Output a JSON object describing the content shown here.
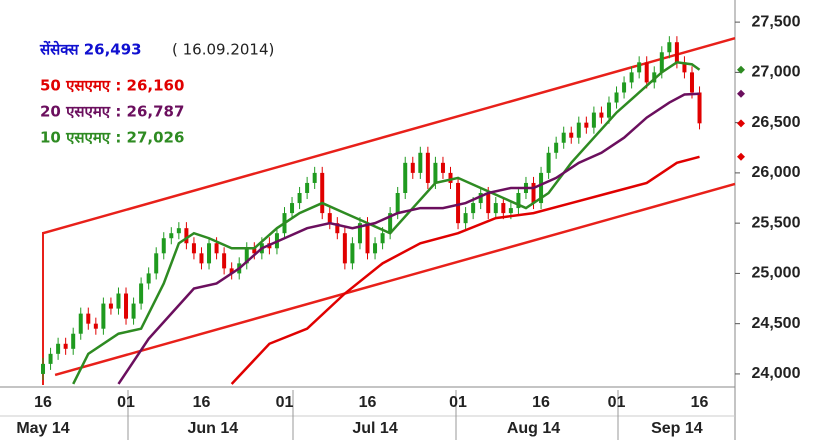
{
  "chart_data": {
    "type": "candlestick",
    "annotations": [
      {
        "text": "सेंसेक्स 26,493",
        "color": "#1010d0"
      },
      {
        "text": "( 16.09.2014)",
        "color": "#222222"
      },
      {
        "text": "50 एसएमए : 26,160",
        "color": "#e00000"
      },
      {
        "text": "20 एसएमए : 26,787",
        "color": "#6b0f5e"
      },
      {
        "text": "10 एसएमए : 27,026",
        "color": "#2e8b22"
      }
    ],
    "categories": [
      "16",
      null,
      null,
      null,
      null,
      null,
      null,
      null,
      null,
      null,
      null,
      "01",
      null,
      null,
      null,
      null,
      null,
      null,
      null,
      null,
      null,
      "16",
      null,
      null,
      null,
      null,
      null,
      null,
      null,
      null,
      null,
      null,
      "01",
      null,
      null,
      null,
      null,
      null,
      null,
      null,
      null,
      null,
      null,
      "16",
      null,
      null,
      null,
      null,
      null,
      null,
      null,
      null,
      null,
      null,
      null,
      "01",
      null,
      null,
      null,
      null,
      null,
      null,
      null,
      null,
      null,
      null,
      "16",
      null,
      null,
      null,
      null,
      null,
      null,
      null,
      null,
      null,
      "01",
      null,
      null,
      null,
      null,
      null,
      null,
      null,
      null,
      null,
      null,
      "16"
    ],
    "months": [
      {
        "value": 0,
        "label": "May 14"
      },
      {
        "value": 22.5,
        "label": "Jun 14"
      },
      {
        "value": 44,
        "label": "Jul 14"
      },
      {
        "value": 65,
        "label": "Aug 14"
      },
      {
        "value": 84,
        "label": "Sep 14"
      }
    ],
    "candles": {
      "up_color": "#1f9a1f",
      "down_color": "#e00000",
      "open": [
        24000,
        24100,
        24200,
        24300,
        24250,
        24400,
        24600,
        24500,
        24450,
        24700,
        24650,
        24800,
        24550,
        24700,
        24900,
        25000,
        25200,
        25350,
        25400,
        25450,
        25300,
        25200,
        25100,
        25300,
        25200,
        25050,
        25000,
        25100,
        25250,
        25200,
        25300,
        25250,
        25400,
        25600,
        25700,
        25800,
        25900,
        26000,
        25600,
        25500,
        25400,
        25100,
        25300,
        25500,
        25200,
        25300,
        25400,
        25600,
        25800,
        26100,
        26000,
        26200,
        25900,
        26100,
        26000,
        25900,
        25500,
        25600,
        25700,
        25800,
        25600,
        25700,
        25600,
        25650,
        25800,
        25900,
        25700,
        26000,
        26200,
        26300,
        26400,
        26350,
        26500,
        26450,
        26600,
        26550,
        26700,
        26800,
        26900,
        27000,
        27100,
        26900,
        27000,
        27200,
        27300,
        27100,
        27000,
        26800
      ],
      "high": [
        24160,
        24260,
        24360,
        24360,
        24460,
        24660,
        24660,
        24560,
        24760,
        24760,
        24860,
        24860,
        24760,
        24960,
        25060,
        25260,
        25410,
        25460,
        25510,
        25510,
        25360,
        25260,
        25360,
        25360,
        25260,
        25110,
        25160,
        25310,
        25310,
        25360,
        25360,
        25460,
        25660,
        25760,
        25860,
        25960,
        26060,
        26060,
        25660,
        25560,
        25460,
        25360,
        25560,
        25560,
        25360,
        25460,
        25660,
        25860,
        26160,
        26160,
        26260,
        26260,
        26160,
        26160,
        26060,
        25960,
        25660,
        25760,
        25860,
        25860,
        25760,
        25760,
        25710,
        25860,
        25960,
        25960,
        26060,
        26260,
        26360,
        26460,
        26460,
        26560,
        26560,
        26660,
        26660,
        26760,
        26860,
        26960,
        27060,
        27160,
        27160,
        27060,
        27260,
        27360,
        27360,
        27160,
        27060,
        26860
      ],
      "low": [
        23940,
        24040,
        24140,
        24190,
        24190,
        24340,
        24440,
        24390,
        24390,
        24590,
        24590,
        24490,
        24490,
        24640,
        24840,
        24940,
        25140,
        25290,
        25340,
        25240,
        25140,
        25040,
        25040,
        25140,
        24990,
        24940,
        24940,
        25040,
        25140,
        25140,
        25190,
        25190,
        25340,
        25540,
        25640,
        25740,
        25840,
        25540,
        25440,
        25340,
        25040,
        25040,
        25240,
        25140,
        25140,
        25240,
        25340,
        25540,
        25740,
        25940,
        25940,
        25840,
        25840,
        25940,
        25840,
        25440,
        25440,
        25540,
        25640,
        25540,
        25540,
        25540,
        25540,
        25590,
        25740,
        25640,
        25640,
        25940,
        26140,
        26240,
        26290,
        26290,
        26390,
        26390,
        26490,
        26490,
        26640,
        26740,
        26840,
        26940,
        26840,
        26840,
        26940,
        27140,
        27040,
        26940,
        26740,
        26433
      ],
      "close": [
        24100,
        24200,
        24300,
        24250,
        24400,
        24600,
        24500,
        24450,
        24700,
        24650,
        24800,
        24550,
        24700,
        24900,
        25000,
        25200,
        25350,
        25400,
        25450,
        25300,
        25200,
        25100,
        25300,
        25200,
        25050,
        25000,
        25100,
        25250,
        25200,
        25300,
        25250,
        25400,
        25600,
        25700,
        25800,
        25900,
        26000,
        25600,
        25500,
        25400,
        25100,
        25300,
        25500,
        25200,
        25300,
        25400,
        25600,
        25800,
        26100,
        26000,
        26200,
        25900,
        26100,
        26000,
        25900,
        25500,
        25600,
        25700,
        25800,
        25600,
        25700,
        25600,
        25650,
        25800,
        25900,
        25700,
        26000,
        26200,
        26300,
        26400,
        26350,
        26500,
        26450,
        26600,
        26550,
        26700,
        26800,
        26900,
        27000,
        27100,
        26900,
        27000,
        27200,
        27300,
        27100,
        27000,
        26800,
        26493
      ]
    },
    "series": [
      {
        "color": "#2e8b22",
        "x": [
          4,
          6,
          10,
          13,
          16,
          18,
          20,
          22,
          25,
          28,
          31,
          34,
          37,
          40,
          43,
          46,
          49,
          52,
          55,
          58,
          61,
          64,
          67,
          70,
          73,
          76,
          79,
          82,
          84,
          86,
          87
        ],
        "values": [
          23900,
          24200,
          24400,
          24450,
          24900,
          25300,
          25400,
          25350,
          25250,
          25250,
          25450,
          25600,
          25700,
          25600,
          25500,
          25400,
          25650,
          25900,
          25950,
          25850,
          25750,
          25650,
          25800,
          26100,
          26350,
          26600,
          26800,
          27000,
          27100,
          27080,
          27026
        ]
      },
      {
        "color": "#6b0f5e",
        "x": [
          10,
          14,
          17,
          20,
          23,
          26,
          29,
          32,
          35,
          38,
          41,
          44,
          47,
          50,
          53,
          56,
          59,
          62,
          65,
          68,
          71,
          74,
          77,
          80,
          83,
          85,
          87
        ],
        "values": [
          23900,
          24350,
          24600,
          24850,
          24900,
          25050,
          25250,
          25350,
          25450,
          25500,
          25450,
          25500,
          25600,
          25650,
          25650,
          25700,
          25800,
          25850,
          25850,
          25950,
          26100,
          26200,
          26350,
          26550,
          26700,
          26780,
          26787
        ]
      },
      {
        "color": "#e00000",
        "x": [
          25,
          30,
          35,
          40,
          45,
          50,
          55,
          60,
          65,
          70,
          75,
          80,
          84,
          87
        ],
        "values": [
          23900,
          24300,
          24450,
          24800,
          25100,
          25300,
          25400,
          25550,
          25600,
          25700,
          25800,
          25900,
          26100,
          26160
        ]
      }
    ],
    "channels": [
      {
        "color": "#e8201a",
        "x": [
          0,
          91.7
        ],
        "values": [
          25400,
          27340
        ]
      },
      {
        "color": "#e8201a",
        "x": [
          1.6,
          91.7
        ],
        "values": [
          23990,
          25890
        ]
      }
    ],
    "xlim": [
      -5.7,
      91.7
    ],
    "ylim": [
      23870,
      27720
    ],
    "yticks": [
      {
        "value": 24000,
        "label": "24,000"
      },
      {
        "value": 24500,
        "label": "24,500"
      },
      {
        "value": 25000,
        "label": "25,000"
      },
      {
        "value": 25500,
        "label": "25,500"
      },
      {
        "value": 26000,
        "label": "26,000"
      },
      {
        "value": 26500,
        "label": "26,500"
      },
      {
        "value": 27000,
        "label": "27,000"
      },
      {
        "value": 27500,
        "label": "27,500"
      }
    ]
  }
}
